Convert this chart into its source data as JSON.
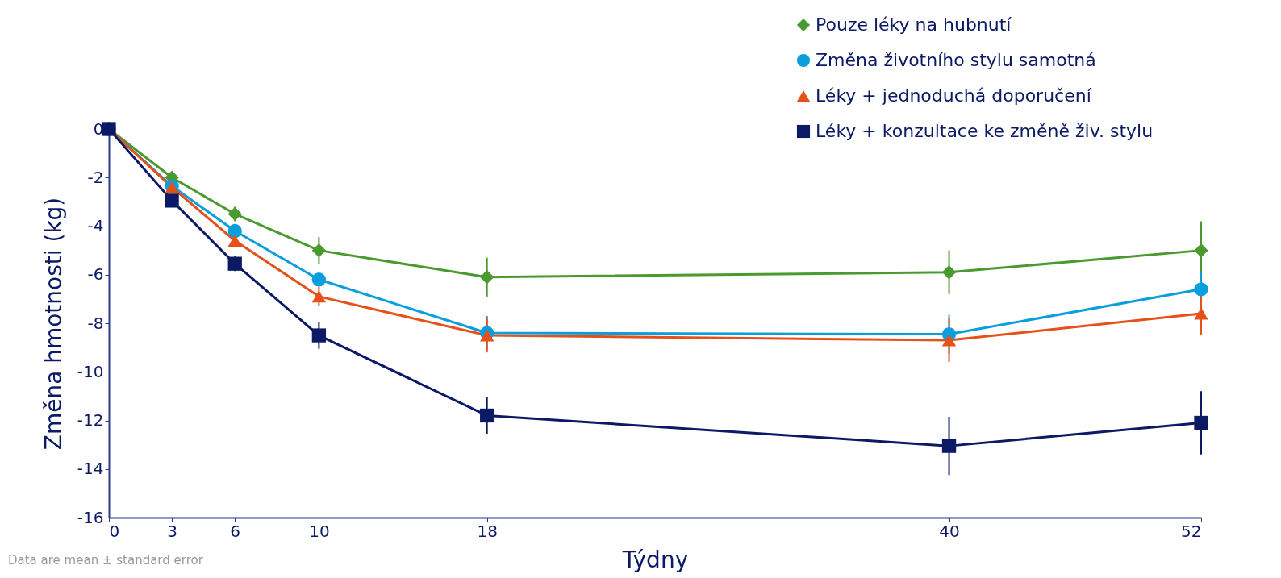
{
  "chart_data": {
    "type": "line",
    "xlabel": "Týdny",
    "ylabel": "Změna hmotnosti (kg)",
    "x": [
      0,
      3,
      6,
      10,
      18,
      40,
      52
    ],
    "xlim": [
      0,
      52
    ],
    "xticks": [
      0,
      3,
      6,
      10,
      18,
      40,
      52
    ],
    "ylim": [
      -16,
      0
    ],
    "yticks": [
      0,
      -2,
      -4,
      -6,
      -8,
      -10,
      -12,
      -14,
      -16
    ],
    "grid": false,
    "legend": "top right",
    "line_style": "solid",
    "annotations": [
      "Data are mean ± standard error"
    ],
    "series": [
      {
        "name": "Pouze léky na hubnutí",
        "color": "#4a9a2f",
        "marker": "diamond",
        "values": [
          0,
          -2.0,
          -3.5,
          -5.0,
          -6.1,
          -5.9,
          -5.0
        ],
        "errors": [
          null,
          0.2,
          0.3,
          0.55,
          0.8,
          0.9,
          1.2
        ]
      },
      {
        "name": "Změna životního stylu samotná",
        "color": "#0a9fdc",
        "marker": "circle",
        "values": [
          0,
          -2.35,
          -4.2,
          -6.2,
          -8.4,
          -8.45,
          -6.6
        ],
        "errors": [
          null,
          null,
          null,
          null,
          0.7,
          0.8,
          0.7
        ]
      },
      {
        "name": "Léky + jednoduchá doporučení",
        "color": "#e8501a",
        "marker": "triangle",
        "values": [
          0,
          -2.4,
          -4.6,
          -6.9,
          -8.5,
          -8.7,
          -7.6
        ],
        "errors": [
          null,
          null,
          null,
          0.4,
          0.7,
          0.9,
          0.9
        ]
      },
      {
        "name": "Léky + konzultace ke změně živ. stylu",
        "color": "#0c1a66",
        "marker": "square",
        "values": [
          0,
          -2.95,
          -5.55,
          -8.5,
          -11.8,
          -13.05,
          -12.1
        ],
        "errors": [
          null,
          null,
          0.3,
          0.55,
          0.75,
          1.2,
          1.3
        ]
      }
    ]
  }
}
